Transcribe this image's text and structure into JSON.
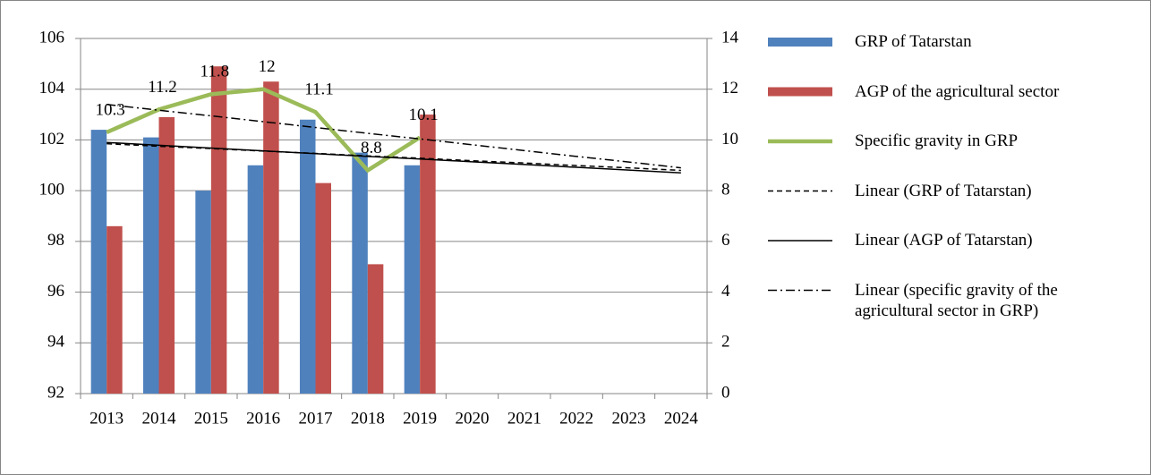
{
  "chart_data": {
    "type": "bar",
    "categories": [
      "2013",
      "2014",
      "2015",
      "2016",
      "2017",
      "2018",
      "2019",
      "2020",
      "2021",
      "2022",
      "2023",
      "2024"
    ],
    "ylim": [
      92,
      106
    ],
    "yticks": [
      92,
      94,
      96,
      98,
      100,
      102,
      104,
      106
    ],
    "y2lim": [
      0,
      14
    ],
    "y2ticks": [
      0,
      2,
      4,
      6,
      8,
      10,
      12,
      14
    ],
    "grid": true,
    "legend": "right",
    "series": [
      {
        "name": "GRP of Tatarstan",
        "type": "bar",
        "color": "#4f81bd",
        "values": [
          102.4,
          102.1,
          100.0,
          101.0,
          102.8,
          101.5,
          101.0,
          null,
          null,
          null,
          null,
          null
        ]
      },
      {
        "name": "AGP of the agricultural sector",
        "type": "bar",
        "color": "#c0504d",
        "values": [
          98.6,
          102.9,
          104.9,
          104.3,
          100.3,
          97.1,
          103.0,
          null,
          null,
          null,
          null,
          null
        ]
      },
      {
        "name": "Specific gravity in GRP",
        "type": "line",
        "axis": "y2",
        "color": "#9bbb59",
        "data_labels": true,
        "values": [
          10.3,
          11.2,
          11.8,
          12,
          11.1,
          8.8,
          10.1,
          null,
          null,
          null,
          null,
          null
        ]
      },
      {
        "name": "Linear (GRP of Tatarstan)",
        "type": "line",
        "dash": "dashed",
        "color": "#000000",
        "values": [
          101.85,
          101.75,
          101.66,
          101.56,
          101.47,
          101.37,
          101.28,
          101.18,
          101.09,
          100.99,
          100.9,
          100.8
        ]
      },
      {
        "name": "Linear (AGP of Tatarstan)",
        "type": "line",
        "dash": "solid",
        "color": "#000000",
        "values": [
          101.9,
          101.79,
          101.68,
          101.57,
          101.46,
          101.35,
          101.25,
          101.14,
          101.03,
          100.92,
          100.81,
          100.7
        ]
      },
      {
        "name": "Linear (specific gravity of the agricultural sector in GRP)",
        "type": "line",
        "axis": "y2",
        "dash": "dashdot",
        "color": "#000000",
        "values": [
          11.4,
          11.17,
          10.95,
          10.72,
          10.49,
          10.26,
          10.04,
          9.81,
          9.58,
          9.35,
          9.13,
          8.9
        ]
      }
    ]
  }
}
